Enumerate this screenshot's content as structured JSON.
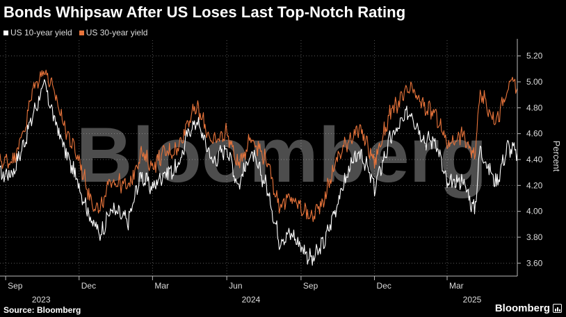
{
  "title": "Bonds Whipsaw After US Loses Last Top-Notch Rating",
  "source": "Source: Bloomberg",
  "brand": "Bloomberg",
  "watermark": "Bloomberg",
  "chart_data": {
    "type": "line",
    "ylabel": "Percent",
    "ylim": [
      3.5,
      5.3
    ],
    "yticks": [
      3.6,
      3.8,
      4.0,
      4.2,
      4.4,
      4.6,
      4.8,
      5.0,
      5.2
    ],
    "ytick_labels": [
      "3.60",
      "3.80",
      "4.00",
      "4.20",
      "4.40",
      "4.60",
      "4.80",
      "5.00",
      "5.20"
    ],
    "xlim": [
      "2023-08-25",
      "2025-05-27"
    ],
    "xticks": [
      {
        "date": "2023-09-01",
        "label": "Sep"
      },
      {
        "date": "2023-12-01",
        "label": "Dec"
      },
      {
        "date": "2024-03-01",
        "label": "Mar"
      },
      {
        "date": "2024-06-01",
        "label": "Jun"
      },
      {
        "date": "2024-09-01",
        "label": "Sep"
      },
      {
        "date": "2024-12-01",
        "label": "Dec"
      },
      {
        "date": "2025-03-01",
        "label": "Mar"
      }
    ],
    "year_labels": [
      {
        "date": "2023-10-15",
        "label": "2023"
      },
      {
        "date": "2024-07-01",
        "label": "2024"
      },
      {
        "date": "2025-04-01",
        "label": "2025"
      }
    ],
    "grid": true,
    "legend_position": "top-left",
    "series": [
      {
        "name": "US 10-year yield",
        "color": "#ffffff",
        "points": [
          [
            "2023-08-25",
            4.28
          ],
          [
            "2023-09-10",
            4.3
          ],
          [
            "2023-09-25",
            4.55
          ],
          [
            "2023-10-05",
            4.75
          ],
          [
            "2023-10-19",
            4.98
          ],
          [
            "2023-11-01",
            4.7
          ],
          [
            "2023-11-15",
            4.45
          ],
          [
            "2023-12-01",
            4.2
          ],
          [
            "2023-12-15",
            3.95
          ],
          [
            "2023-12-27",
            3.82
          ],
          [
            "2024-01-10",
            4.02
          ],
          [
            "2024-01-31",
            3.92
          ],
          [
            "2024-02-15",
            4.28
          ],
          [
            "2024-03-01",
            4.18
          ],
          [
            "2024-03-15",
            4.3
          ],
          [
            "2024-04-01",
            4.33
          ],
          [
            "2024-04-15",
            4.62
          ],
          [
            "2024-04-25",
            4.7
          ],
          [
            "2024-05-15",
            4.38
          ],
          [
            "2024-06-01",
            4.5
          ],
          [
            "2024-06-15",
            4.2
          ],
          [
            "2024-07-01",
            4.45
          ],
          [
            "2024-07-20",
            4.2
          ],
          [
            "2024-08-05",
            3.78
          ],
          [
            "2024-08-20",
            3.83
          ],
          [
            "2024-09-15",
            3.62
          ],
          [
            "2024-10-01",
            3.78
          ],
          [
            "2024-10-15",
            4.05
          ],
          [
            "2024-11-01",
            4.35
          ],
          [
            "2024-11-15",
            4.45
          ],
          [
            "2024-12-01",
            4.18
          ],
          [
            "2024-12-20",
            4.55
          ],
          [
            "2025-01-14",
            4.78
          ],
          [
            "2025-02-01",
            4.55
          ],
          [
            "2025-02-15",
            4.55
          ],
          [
            "2025-03-01",
            4.2
          ],
          [
            "2025-03-20",
            4.25
          ],
          [
            "2025-04-04",
            4.0
          ],
          [
            "2025-04-11",
            4.49
          ],
          [
            "2025-04-20",
            4.35
          ],
          [
            "2025-05-01",
            4.22
          ],
          [
            "2025-05-15",
            4.5
          ],
          [
            "2025-05-20",
            4.48
          ],
          [
            "2025-05-27",
            4.45
          ]
        ]
      },
      {
        "name": "US 30-year yield",
        "color": "#e8743b",
        "points": [
          [
            "2023-08-25",
            4.38
          ],
          [
            "2023-09-10",
            4.4
          ],
          [
            "2023-09-25",
            4.65
          ],
          [
            "2023-10-05",
            4.95
          ],
          [
            "2023-10-19",
            5.1
          ],
          [
            "2023-11-01",
            4.9
          ],
          [
            "2023-11-15",
            4.62
          ],
          [
            "2023-12-01",
            4.4
          ],
          [
            "2023-12-15",
            4.1
          ],
          [
            "2023-12-27",
            4.0
          ],
          [
            "2024-01-10",
            4.25
          ],
          [
            "2024-01-31",
            4.18
          ],
          [
            "2024-02-15",
            4.45
          ],
          [
            "2024-03-01",
            4.35
          ],
          [
            "2024-03-15",
            4.45
          ],
          [
            "2024-04-01",
            4.48
          ],
          [
            "2024-04-15",
            4.72
          ],
          [
            "2024-04-25",
            4.8
          ],
          [
            "2024-05-15",
            4.52
          ],
          [
            "2024-06-01",
            4.62
          ],
          [
            "2024-06-15",
            4.35
          ],
          [
            "2024-07-01",
            4.58
          ],
          [
            "2024-07-20",
            4.4
          ],
          [
            "2024-08-05",
            4.05
          ],
          [
            "2024-08-20",
            4.1
          ],
          [
            "2024-09-15",
            3.95
          ],
          [
            "2024-10-01",
            4.12
          ],
          [
            "2024-10-15",
            4.4
          ],
          [
            "2024-11-01",
            4.58
          ],
          [
            "2024-11-15",
            4.62
          ],
          [
            "2024-12-01",
            4.38
          ],
          [
            "2024-12-20",
            4.75
          ],
          [
            "2025-01-14",
            4.95
          ],
          [
            "2025-02-01",
            4.8
          ],
          [
            "2025-02-15",
            4.75
          ],
          [
            "2025-03-01",
            4.52
          ],
          [
            "2025-03-20",
            4.6
          ],
          [
            "2025-04-04",
            4.4
          ],
          [
            "2025-04-11",
            4.95
          ],
          [
            "2025-04-20",
            4.8
          ],
          [
            "2025-05-01",
            4.7
          ],
          [
            "2025-05-15",
            4.92
          ],
          [
            "2025-05-20",
            5.02
          ],
          [
            "2025-05-27",
            4.95
          ]
        ]
      }
    ]
  }
}
